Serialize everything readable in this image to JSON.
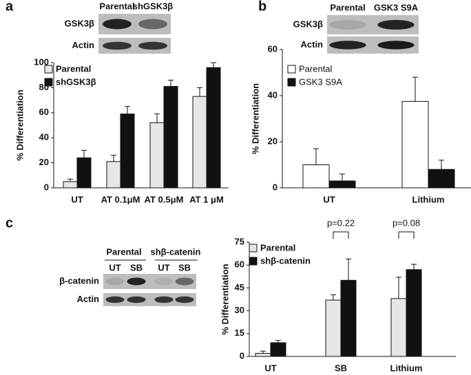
{
  "chart_data": [
    {
      "type": "bar",
      "panel": "a",
      "ylabel": "% Differentiation",
      "blot": {
        "lanes": [
          "Parental",
          "shGSK3β"
        ],
        "rows": [
          "GSK3β",
          "Actin"
        ]
      },
      "categories": [
        "UT",
        "AT 0.1μM",
        "AT 0.5μM",
        "AT 1 μM"
      ],
      "series": [
        {
          "name": "Parental",
          "color": "#e6e6e6",
          "values": [
            5,
            21,
            52,
            73
          ],
          "errors": [
            2,
            5,
            7,
            7
          ]
        },
        {
          "name": "shGSK3β",
          "color": "#111111",
          "values": [
            24,
            59,
            81,
            96
          ],
          "errors": [
            6,
            6,
            5,
            4
          ]
        }
      ],
      "ylim": [
        0,
        100
      ],
      "yticks": [
        0,
        20,
        40,
        60,
        80,
        100
      ]
    },
    {
      "type": "bar",
      "panel": "b",
      "ylabel": "% Differentiation",
      "blot": {
        "lanes": [
          "Parental",
          "GSK3 S9A"
        ],
        "rows": [
          "GSK3β",
          "Actin"
        ]
      },
      "categories": [
        "UT",
        "Lithium"
      ],
      "series": [
        {
          "name": "Parental",
          "color": "#ffffff",
          "values": [
            10,
            37.5
          ],
          "errors": [
            7,
            10.5
          ]
        },
        {
          "name": "GSK3 S9A",
          "color": "#111111",
          "values": [
            3,
            8
          ],
          "errors": [
            3,
            4
          ]
        }
      ],
      "ylim": [
        0,
        60
      ],
      "yticks": [
        0,
        20,
        40,
        60
      ]
    },
    {
      "type": "bar",
      "panel": "c",
      "ylabel": "% Differentiation",
      "blot": {
        "groups": [
          "Parental",
          "shβ-catenin"
        ],
        "lanes": [
          "UT",
          "SB",
          "UT",
          "SB"
        ],
        "rows": [
          "β-catenin",
          "Actin"
        ]
      },
      "categories": [
        "UT",
        "SB",
        "Lithium"
      ],
      "series": [
        {
          "name": "Parental",
          "color": "#e6e6e6",
          "values": [
            2,
            37,
            38
          ],
          "errors": [
            1.5,
            3.5,
            14
          ]
        },
        {
          "name": "shβ-catenin",
          "color": "#111111",
          "values": [
            9,
            50,
            57
          ],
          "errors": [
            1.5,
            14,
            3.5
          ]
        }
      ],
      "annotations": [
        "p=0.22",
        "p=0.08"
      ],
      "ylim": [
        0,
        75
      ],
      "yticks": [
        0,
        15,
        30,
        45,
        60,
        75
      ]
    }
  ]
}
